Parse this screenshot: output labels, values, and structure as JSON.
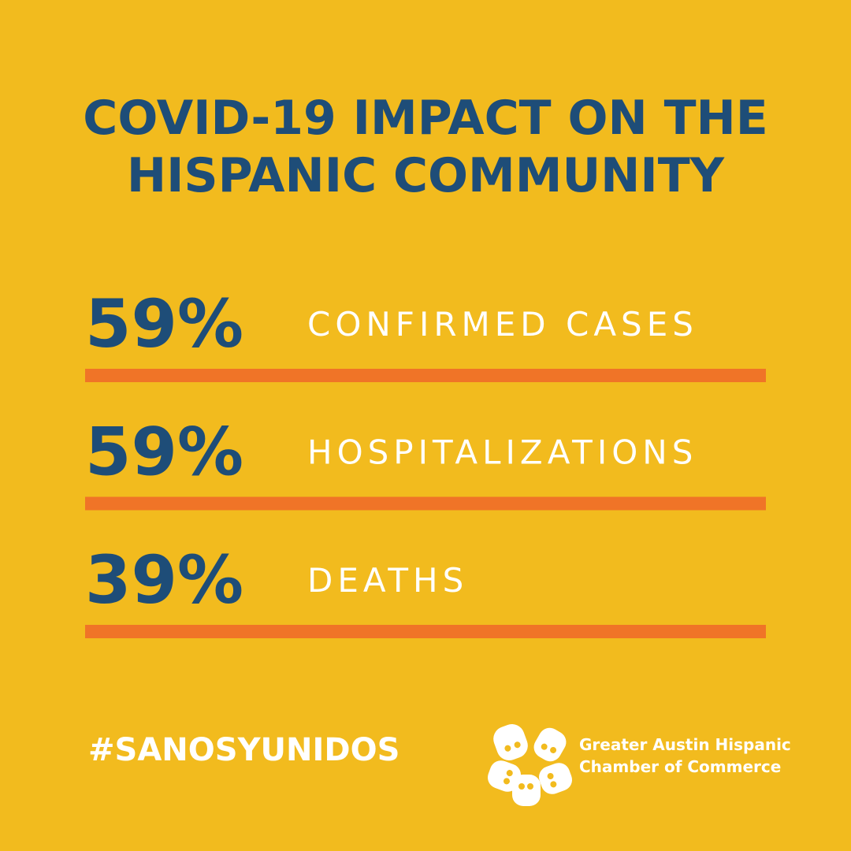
{
  "title": {
    "lines": [
      "COVID-19 IMPACT ON THE",
      "HISPANIC COMMUNITY"
    ]
  },
  "stats": [
    {
      "value": "59%",
      "label": "CONFIRMED CASES"
    },
    {
      "value": "59%",
      "label": "HOSPITALIZATIONS"
    },
    {
      "value": "39%",
      "label": "DEATHS"
    }
  ],
  "hashtag": "#SANOSYUNIDOS",
  "organization": {
    "lines": [
      "Greater Austin Hispanic",
      "Chamber of Commerce"
    ]
  }
}
